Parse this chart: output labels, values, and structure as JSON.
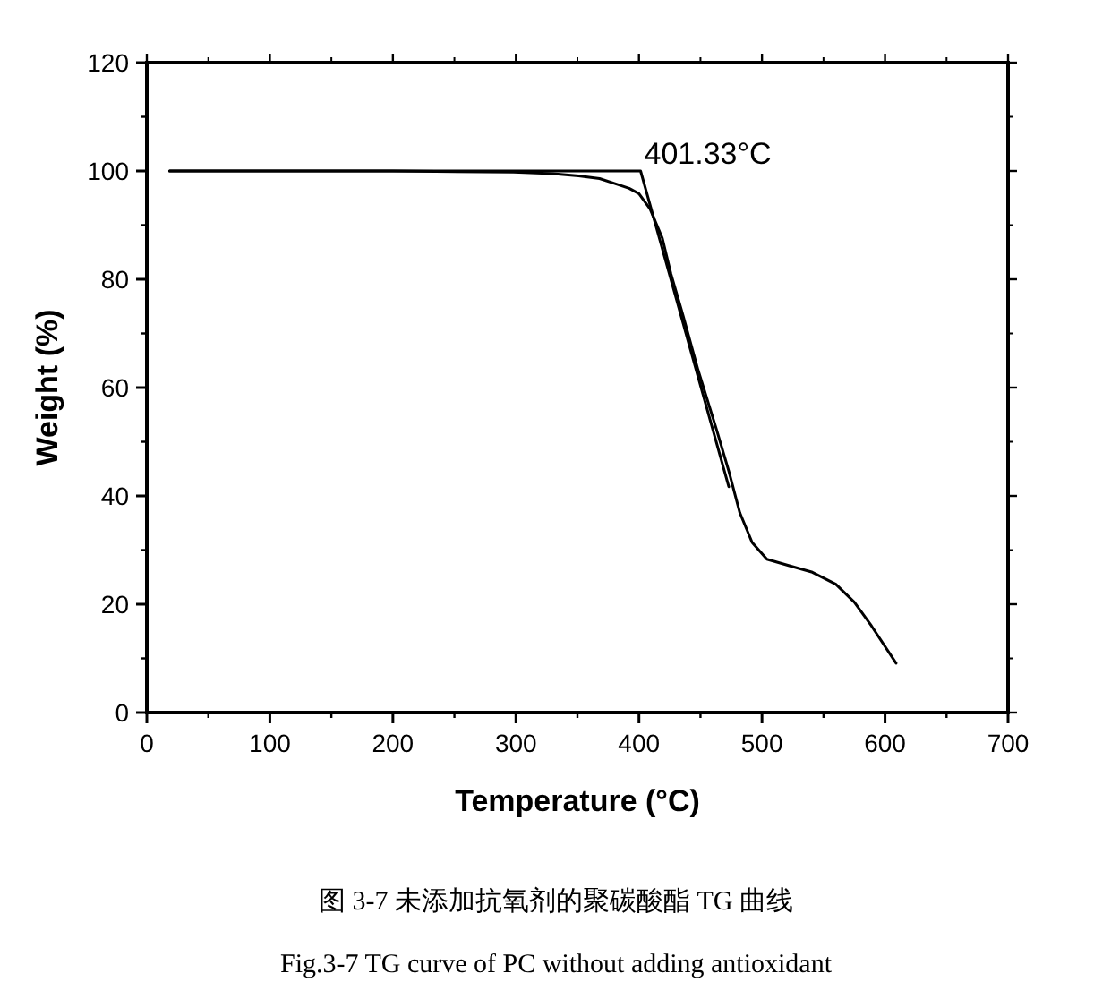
{
  "chart_data": {
    "type": "line",
    "xlabel": "Temperature (°C)",
    "ylabel": "Weight (%)",
    "xlim": [
      0,
      700
    ],
    "xticks": [
      0,
      100,
      200,
      300,
      400,
      500,
      600,
      700
    ],
    "ylim": [
      0,
      120
    ],
    "yticks": [
      0,
      20,
      40,
      60,
      80,
      100,
      120
    ],
    "series": [
      {
        "color": "#000000",
        "x": [
          18.5,
          100,
          200,
          298,
          330,
          351,
          368,
          380,
          392,
          400,
          409,
          419,
          426,
          436,
          448,
          463,
          473,
          482,
          492,
          504,
          521,
          541,
          560,
          575,
          589,
          609
        ],
        "values": [
          100,
          100,
          100,
          99.8,
          99.5,
          99.1,
          98.6,
          97.7,
          96.8,
          95.8,
          93,
          87.6,
          81,
          73.2,
          63.3,
          52.3,
          44.6,
          36.9,
          31.4,
          28.3,
          27.2,
          25.9,
          23.7,
          20.4,
          16,
          9.1
        ]
      },
      {
        "color": "#000000",
        "x": [
          18.5,
          401.33,
          473
        ],
        "values": [
          100,
          100,
          41.7
        ]
      }
    ],
    "annotations": [
      {
        "text": "401.33°C",
        "x": 401.33,
        "y": 100
      },
      "图 3-7  未添加抗氧剂的聚碳酸酯 TG 曲线",
      "Fig.3-7 TG curve of PC without adding antioxidant"
    ],
    "line_style": "solid",
    "marker": "none"
  }
}
